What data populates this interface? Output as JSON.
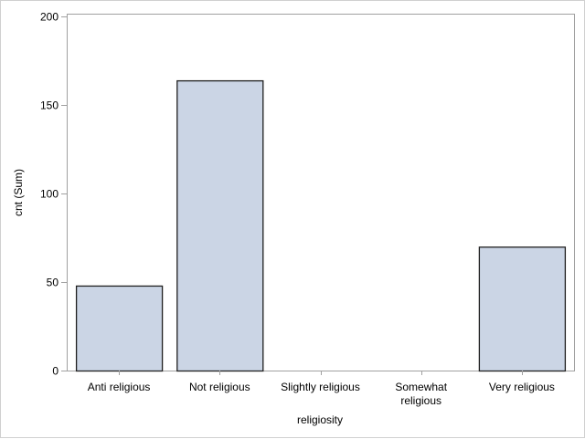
{
  "chart_data": {
    "type": "bar",
    "title": "",
    "xlabel": "religiosity",
    "ylabel": "cnt (Sum)",
    "categories": [
      "Anti religious",
      "Not religious",
      "Slightly religious",
      "Somewhat religious",
      "Very religious"
    ],
    "category_lines": [
      [
        "Anti religious"
      ],
      [
        "Not religious"
      ],
      [
        "Slightly religious"
      ],
      [
        "Somewhat",
        "religious"
      ],
      [
        "Very religious"
      ]
    ],
    "values": [
      48,
      164,
      0,
      0,
      70
    ],
    "ylim": [
      0,
      200
    ],
    "yticks": [
      0,
      50,
      100,
      150,
      200
    ],
    "grid": false,
    "bar_fill": "#cbd5e5",
    "bar_stroke": "#1f1f1f",
    "axis_color": "#a0a0a0"
  }
}
